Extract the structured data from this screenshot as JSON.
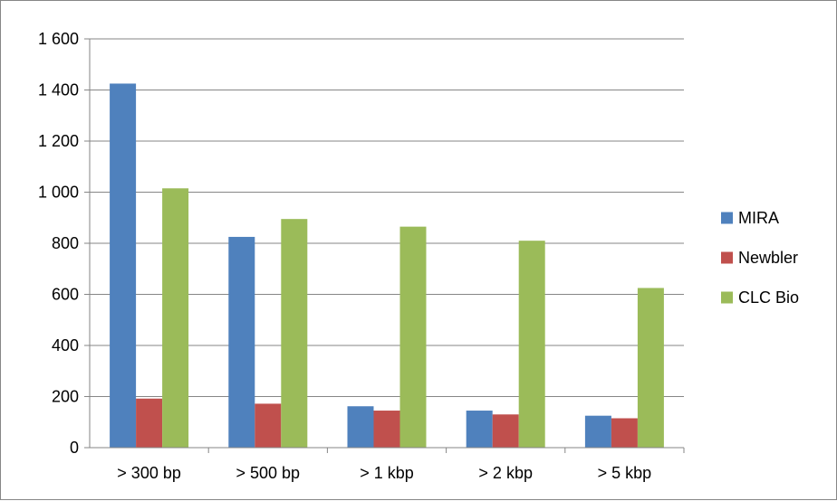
{
  "chart_data": {
    "type": "bar",
    "categories": [
      "> 300 bp",
      "> 500 bp",
      "> 1 kbp",
      "> 2 kbp",
      "> 5 kbp"
    ],
    "series": [
      {
        "name": "MIRA",
        "values": [
          1425,
          825,
          162,
          145,
          125
        ],
        "color": "#4f81bd"
      },
      {
        "name": "Newbler",
        "values": [
          192,
          172,
          145,
          130,
          115
        ],
        "color": "#c0504d"
      },
      {
        "name": "CLC Bio",
        "values": [
          1015,
          895,
          865,
          810,
          625
        ],
        "color": "#9bbb59"
      }
    ],
    "yticks": [
      "0",
      "200",
      "400",
      "600",
      "800",
      "1 000",
      "1 200",
      "1 400",
      "1 600"
    ],
    "ylim": [
      0,
      1600
    ],
    "grid": true,
    "legend": "right"
  }
}
